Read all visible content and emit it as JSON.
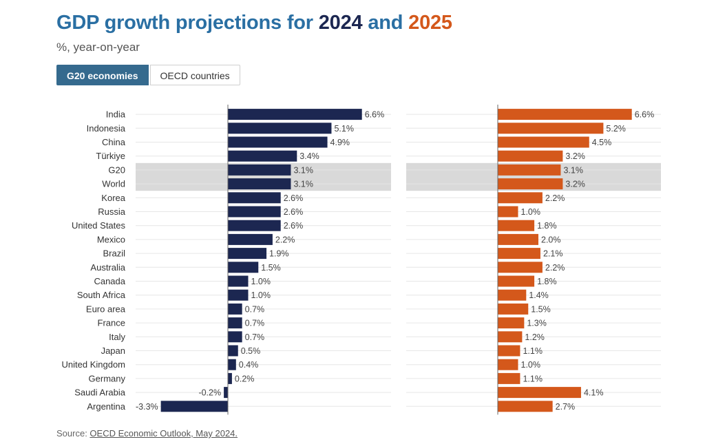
{
  "header": {
    "title_prefix": "GDP growth projections for ",
    "year1": "2024",
    "title_and": " and ",
    "year2": "2025",
    "subtitle": "%, year-on-year"
  },
  "tabs": [
    {
      "label": "G20 economies",
      "active": true
    },
    {
      "label": "OECD countries",
      "active": false
    }
  ],
  "source": {
    "prefix": "Source: ",
    "link_text": "OECD Economic Outlook, May 2024."
  },
  "colors": {
    "series_2024": "#1c2751",
    "series_2025": "#d4581b",
    "highlight": "#d9d9d9",
    "title": "#2a6fa3"
  },
  "chart_data": {
    "type": "bar",
    "orientation": "horizontal",
    "categories": [
      "India",
      "Indonesia",
      "China",
      "Türkiye",
      "G20",
      "World",
      "Korea",
      "Russia",
      "United States",
      "Mexico",
      "Brazil",
      "Australia",
      "Canada",
      "South Africa",
      "Euro area",
      "France",
      "Italy",
      "Japan",
      "United Kingdom",
      "Germany",
      "Saudi Arabia",
      "Argentina"
    ],
    "highlighted_categories": [
      "G20",
      "World"
    ],
    "series": [
      {
        "name": "2024",
        "values": [
          6.6,
          5.1,
          4.9,
          3.4,
          3.1,
          3.1,
          2.6,
          2.6,
          2.6,
          2.2,
          1.9,
          1.5,
          1.0,
          1.0,
          0.7,
          0.7,
          0.7,
          0.5,
          0.4,
          0.2,
          -0.2,
          -3.3
        ],
        "labels": [
          "6.6%",
          "5.1%",
          "4.9%",
          "3.4%",
          "3.1%",
          "3.1%",
          "2.6%",
          "2.6%",
          "2.6%",
          "2.2%",
          "1.9%",
          "1.5%",
          "1.0%",
          "1.0%",
          "0.7%",
          "0.7%",
          "0.7%",
          "0.5%",
          "0.4%",
          "0.2%",
          "-0.2%",
          "-3.3%"
        ]
      },
      {
        "name": "2025",
        "values": [
          6.6,
          5.2,
          4.5,
          3.2,
          3.1,
          3.2,
          2.2,
          1.0,
          1.8,
          2.0,
          2.1,
          2.2,
          1.8,
          1.4,
          1.5,
          1.3,
          1.2,
          1.1,
          1.0,
          1.1,
          4.1,
          2.7
        ],
        "labels": [
          "6.6%",
          "5.2%",
          "4.5%",
          "3.2%",
          "3.1%",
          "3.2%",
          "2.2%",
          "1.0%",
          "1.8%",
          "2.0%",
          "2.1%",
          "2.2%",
          "1.8%",
          "1.4%",
          "1.5%",
          "1.3%",
          "1.2%",
          "1.1%",
          "1.0%",
          "1.1%",
          "4.1%",
          "2.7%"
        ]
      }
    ]
  }
}
